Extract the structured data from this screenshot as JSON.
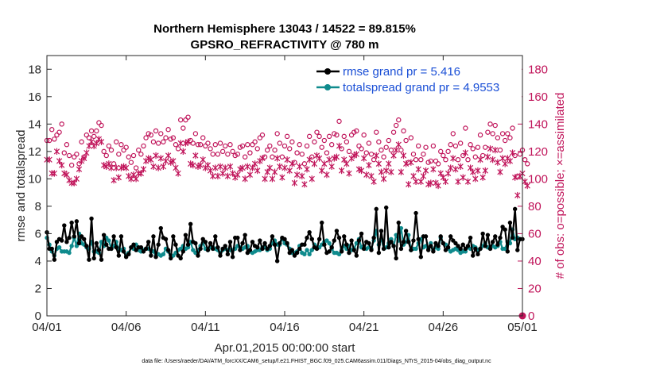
{
  "chart_data": {
    "type": "line",
    "title_line1": "Northern Hemisphere 13043 / 14522 = 89.815%",
    "title_line2": "GPSRO_REFRACTIVITY @ 780 m",
    "xlabel": "Apr.01,2015 00:00:00 start",
    "ylabel_left": "rmse and totalspread",
    "ylabel_right": "# of obs: o=possible; ×=assimilated",
    "footnote": "data file: /Users/raeder/DAI/ATM_forcXX/CAM6_setup/f.e21.FHIST_BGC.f09_025.CAM6assim.011/Diags_NTrS_2015-04/obs_diag_output.nc",
    "x_range": [
      0,
      30
    ],
    "x_ticks": [
      0,
      5,
      10,
      15,
      20,
      25,
      30
    ],
    "x_tick_labels": [
      "04/01",
      "04/06",
      "04/11",
      "04/16",
      "04/21",
      "04/26",
      "05/01"
    ],
    "ylim_left": [
      0,
      19
    ],
    "y_ticks_left": [
      0,
      2,
      4,
      6,
      8,
      10,
      12,
      14,
      16,
      18
    ],
    "y_tick_labels_left": [
      "0",
      "2",
      "4",
      "6",
      "8",
      "10",
      "12",
      "14",
      "16",
      "18"
    ],
    "ylim_right": [
      0,
      190
    ],
    "y_ticks_right": [
      0,
      20,
      40,
      60,
      80,
      100,
      120,
      140,
      160,
      180
    ],
    "y_tick_labels_right": [
      "0",
      "20",
      "40",
      "60",
      "80",
      "100",
      "120",
      "140",
      "160",
      "180"
    ],
    "series": [
      {
        "name": "rmse grand pr = 5.416",
        "axis": "left",
        "color": "#000000",
        "values": [
          6.1,
          4.9,
          4.9,
          4.1,
          5.4,
          5.6,
          5.5,
          6.6,
          5.4,
          5.7,
          6.8,
          5.8,
          6.9,
          5.3,
          5.8,
          5.6,
          5.1,
          4.1,
          7.1,
          4.2,
          5.3,
          4.8,
          4.1,
          5.9,
          5.2,
          4.9,
          4.9,
          5.8,
          5.0,
          4.4,
          5.8,
          4.7,
          4.3,
          4.5,
          5.0,
          5.2,
          4.8,
          5.0,
          5.0,
          4.7,
          4.9,
          5.4,
          4.4,
          5.8,
          4.3,
          5.2,
          6.4,
          5.7,
          5.6,
          4.8,
          4.2,
          5.8,
          5.2,
          4.4,
          4.2,
          4.7,
          5.9,
          5.2,
          6.7,
          5.4,
          5.3,
          4.4,
          4.9,
          5.6,
          5.4,
          4.8,
          5.3,
          4.9,
          5.8,
          5.0,
          4.4,
          4.9,
          5.1,
          4.5,
          5.4,
          4.3,
          5.7,
          5.7,
          4.8,
          5.3,
          5.9,
          4.6,
          4.8,
          5.4,
          5.1,
          5.0,
          5.5,
          4.9,
          5.3,
          4.9,
          5.1,
          5.8,
          5.2,
          4.0,
          5.3,
          5.7,
          5.6,
          5.3,
          4.6,
          4.8,
          4.4,
          4.6,
          4.9,
          5.2,
          5.2,
          5.7,
          6.1,
          5.6,
          5.0,
          4.9,
          5.6,
          6.8,
          5.2,
          4.6,
          4.7,
          5.0,
          5.5,
          6.2,
          5.7,
          4.7,
          5.8,
          5.2,
          4.6,
          5.5,
          4.8,
          4.4,
          5.5,
          6.0,
          4.9,
          5.4,
          5.3,
          4.8,
          5.7,
          7.8,
          4.6,
          6.2,
          4.9,
          7.9,
          5.0,
          5.4,
          5.1,
          4.2,
          6.8,
          4.9,
          5.4,
          6.2,
          5.4,
          4.8,
          5.5,
          7.5,
          5.6,
          4.3,
          5.8,
          5.8,
          4.8,
          5.1,
          4.7,
          5.3,
          5.1,
          5.8,
          5.3,
          4.8,
          5.0,
          5.8,
          5.5,
          5.3,
          5.1,
          4.9,
          5.2,
          4.9,
          5.1,
          5.7,
          4.4,
          4.9,
          4.5,
          4.9,
          6.0,
          5.1,
          5.9,
          4.9,
          5.4,
          5.8,
          5.2,
          5.7,
          6.5,
          6.3,
          4.7,
          6.8,
          5.7,
          7.8,
          4.8,
          5.6,
          5.6
        ]
      },
      {
        "name": "totalspread grand pr = 4.9553",
        "axis": "left",
        "color": "#0f8b8d",
        "values": [
          5.7,
          5.2,
          4.7,
          4.4,
          4.9,
          5.0,
          4.7,
          4.7,
          4.7,
          4.6,
          5.1,
          5.7,
          5.1,
          6.0,
          5.3,
          5.2,
          5.0,
          4.9,
          5.4,
          4.7,
          4.7,
          4.6,
          5.4,
          5.1,
          5.7,
          5.5,
          4.9,
          5.1,
          5.4,
          4.9,
          4.8,
          4.9,
          4.4,
          4.6,
          5.0,
          4.9,
          5.2,
          4.8,
          4.7,
          4.8,
          4.9,
          4.9,
          4.8,
          4.7,
          4.4,
          4.5,
          4.4,
          4.5,
          4.9,
          4.7,
          4.4,
          4.4,
          4.6,
          4.8,
          4.9,
          5.1,
          4.9,
          5.0,
          5.4,
          4.8,
          4.6,
          4.8,
          5.1,
          5.3,
          4.9,
          4.8,
          5.0,
          5.0,
          4.9,
          4.8,
          4.6,
          4.8,
          4.9,
          4.8,
          4.8,
          4.8,
          4.9,
          5.1,
          5.0,
          4.9,
          5.0,
          5.1,
          4.7,
          4.6,
          4.7,
          4.8,
          4.8,
          5.0,
          5.0,
          4.8,
          4.9,
          5.3,
          5.5,
          5.2,
          5.2,
          5.6,
          5.3,
          5.2,
          4.9,
          4.6,
          4.6,
          4.7,
          5.1,
          4.6,
          4.5,
          4.8,
          4.5,
          4.8,
          5.2,
          5.0,
          5.0,
          5.2,
          5.4,
          5.5,
          5.3,
          4.9,
          4.6,
          4.6,
          4.5,
          4.8,
          5.1,
          4.9,
          5.1,
          4.8,
          4.9,
          5.3,
          5.6,
          5.0,
          5.1,
          4.9,
          5.0,
          4.9,
          5.5,
          6.2,
          5.2,
          5.6,
          4.9,
          5.0,
          5.3,
          5.6,
          5.1,
          5.9,
          5.5,
          6.4,
          5.2,
          5.4,
          5.9,
          4.8,
          4.9,
          4.9,
          5.3,
          5.6,
          5.0,
          5.1,
          4.9,
          5.3,
          4.8,
          5.0,
          4.9,
          5.7,
          5.3,
          5.2,
          4.9,
          4.7,
          4.8,
          4.9,
          4.8,
          4.6,
          4.7,
          4.7,
          5.0,
          4.9,
          5.1,
          5.0,
          4.8,
          4.9,
          5.1,
          5.3,
          5.0,
          5.0,
          5.1,
          5.0,
          5.1,
          5.4,
          4.9,
          4.9,
          5.4,
          5.3,
          6.3,
          5.6,
          5.7,
          5.6
        ]
      }
    ],
    "possible_obs": {
      "axis": "right",
      "marker": "o",
      "color": "#c0145a",
      "values": [
        128,
        128,
        136,
        129,
        132,
        134,
        140,
        119,
        125,
        117,
        110,
        116,
        118,
        111,
        127,
        116,
        132,
        130,
        135,
        131,
        135,
        141,
        139,
        120,
        117,
        124,
        121,
        111,
        127,
        118,
        125,
        121,
        123,
        116,
        112,
        117,
        108,
        121,
        118,
        124,
        130,
        133,
        132,
        127,
        135,
        126,
        133,
        127,
        130,
        136,
        129,
        130,
        125,
        122,
        143,
        137,
        143,
        145,
        128,
        126,
        133,
        125,
        125,
        130,
        124,
        126,
        122,
        118,
        125,
        118,
        126,
        120,
        124,
        118,
        125,
        120,
        117,
        118,
        123,
        124,
        116,
        125,
        119,
        125,
        127,
        122,
        130,
        132,
        116,
        121,
        124,
        116,
        121,
        133,
        126,
        116,
        124,
        131,
        122,
        127,
        112,
        119,
        125,
        118,
        111,
        124,
        131,
        116,
        127,
        134,
        131,
        123,
        128,
        119,
        131,
        125,
        133,
        132,
        142,
        122,
        131,
        127,
        120,
        132,
        134,
        135,
        124,
        122,
        132,
        119,
        126,
        118,
        114,
        134,
        127,
        121,
        116,
        123,
        128,
        121,
        134,
        139,
        143,
        121,
        135,
        128,
        112,
        130,
        118,
        114,
        124,
        114,
        118,
        123,
        112,
        113,
        124,
        113,
        111,
        120,
        117,
        114,
        120,
        125,
        133,
        124,
        114,
        126,
        117,
        137,
        114,
        125,
        122,
        116,
        123,
        132,
        117,
        123,
        134,
        140,
        133,
        139,
        130,
        121,
        133,
        128,
        133,
        130,
        137,
        117,
        102,
        118,
        121,
        114,
        111
      ]
    },
    "assimilated_obs": {
      "axis": "right",
      "marker": "x",
      "color": "#c0145a",
      "values": [
        114,
        114,
        104,
        104,
        120,
        113,
        110,
        104,
        103,
        99,
        97,
        97,
        100,
        107,
        113,
        115,
        119,
        124,
        127,
        124,
        126,
        129,
        127,
        110,
        109,
        111,
        108,
        99,
        108,
        101,
        108,
        109,
        108,
        102,
        100,
        103,
        100,
        104,
        104,
        107,
        113,
        115,
        114,
        109,
        117,
        108,
        115,
        109,
        113,
        117,
        112,
        113,
        108,
        104,
        126,
        120,
        126,
        127,
        111,
        110,
        117,
        109,
        110,
        114,
        108,
        110,
        106,
        102,
        108,
        102,
        109,
        104,
        108,
        102,
        109,
        104,
        101,
        103,
        107,
        108,
        100,
        109,
        103,
        108,
        111,
        106,
        113,
        115,
        100,
        105,
        108,
        100,
        105,
        115,
        109,
        101,
        108,
        114,
        106,
        111,
        97,
        103,
        109,
        102,
        96,
        107,
        114,
        100,
        111,
        117,
        115,
        106,
        111,
        103,
        114,
        109,
        115,
        116,
        124,
        106,
        114,
        111,
        104,
        115,
        117,
        118,
        107,
        106,
        115,
        103,
        110,
        102,
        98,
        117,
        111,
        105,
        100,
        106,
        111,
        105,
        117,
        121,
        125,
        105,
        117,
        111,
        96,
        112,
        102,
        98,
        107,
        98,
        102,
        106,
        96,
        97,
        107,
        97,
        95,
        104,
        101,
        98,
        104,
        108,
        115,
        107,
        98,
        109,
        101,
        119,
        98,
        108,
        105,
        100,
        106,
        114,
        101,
        106,
        116,
        122,
        114,
        121,
        112,
        105,
        115,
        111,
        115,
        113,
        119,
        101,
        88,
        102,
        104,
        98,
        95
      ]
    }
  }
}
